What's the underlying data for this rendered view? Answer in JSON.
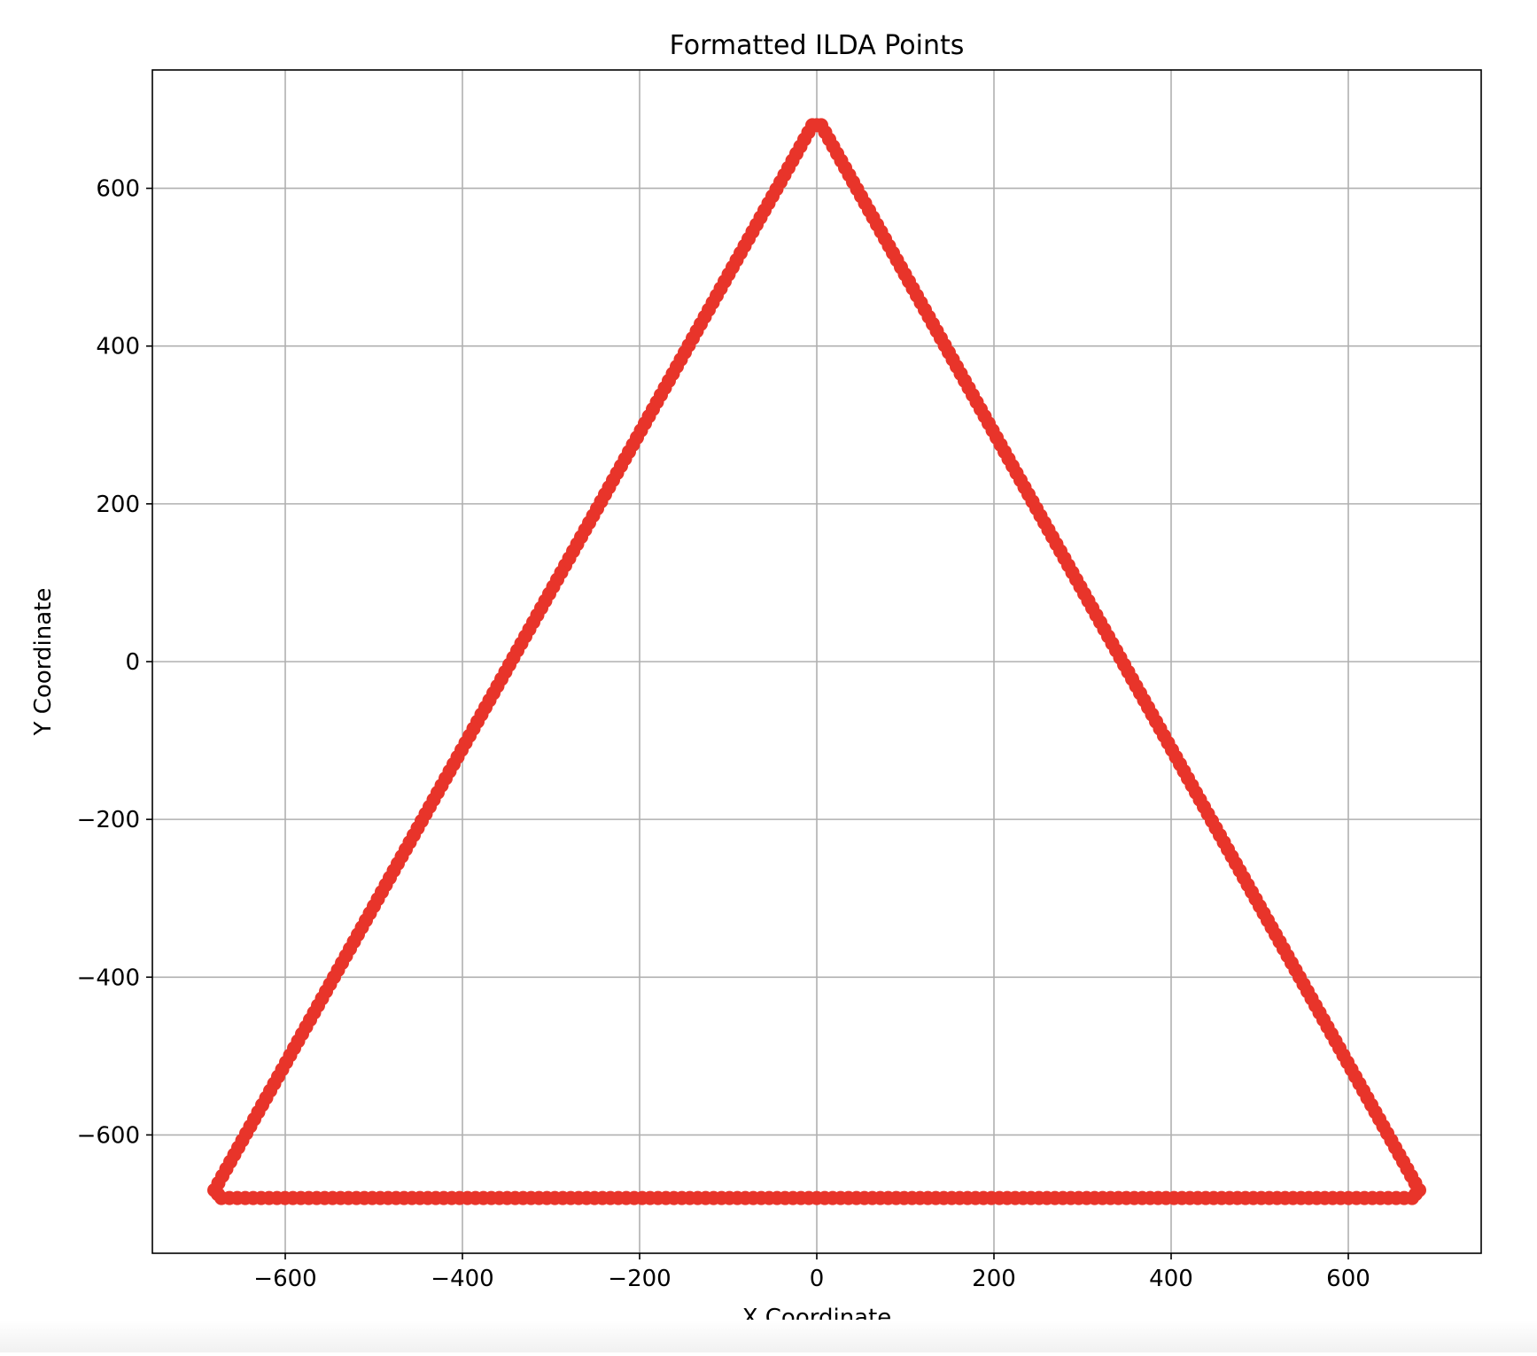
{
  "chart_data": {
    "type": "scatter",
    "title": "Formatted ILDA Points",
    "xlabel": "X Coordinate",
    "ylabel": "Y Coordinate",
    "xlim": [
      -750,
      750
    ],
    "ylim": [
      -750,
      750
    ],
    "xticks": [
      -600,
      -400,
      -200,
      0,
      200,
      400,
      600
    ],
    "yticks": [
      -600,
      -400,
      -200,
      0,
      200,
      400,
      600
    ],
    "xtick_labels": [
      "−600",
      "−400",
      "−200",
      "0",
      "200",
      "400",
      "600"
    ],
    "ytick_labels": [
      "−600",
      "−400",
      "−200",
      "0",
      "200",
      "400",
      "600"
    ],
    "grid": true,
    "marker_color": "#e8342a",
    "series": [
      {
        "shape": "closed-triangle",
        "vertices": [
          [
            -680,
            -670
          ],
          [
            -672,
            -680
          ],
          [
            672,
            -680
          ],
          [
            680,
            -670
          ],
          [
            5,
            680
          ],
          [
            -5,
            680
          ]
        ],
        "points_per_edge": [
          2,
          150,
          2,
          150,
          2,
          150
        ]
      }
    ]
  }
}
